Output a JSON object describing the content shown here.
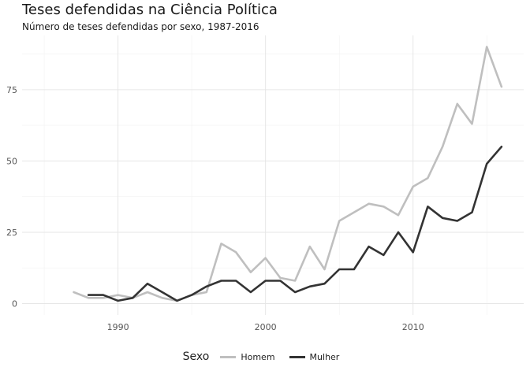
{
  "chart_data": {
    "type": "line",
    "title": "Teses defendidas na Ciência Política",
    "subtitle": "Número de teses defendidas por sexo, 1987-2016",
    "xlabel": "",
    "ylabel": "",
    "xlim": [
      1983.5,
      2017.5
    ],
    "ylim": [
      -4,
      94
    ],
    "xticks": [
      1990,
      2000,
      2010
    ],
    "yticks": [
      0,
      25,
      50,
      75
    ],
    "legend_title": "Sexo",
    "legend_position": "bottom",
    "grid": true,
    "series": [
      {
        "name": "Homem",
        "color": "#bfbfbf",
        "x": [
          1987,
          1988,
          1989,
          1990,
          1991,
          1992,
          1993,
          1994,
          1995,
          1996,
          1997,
          1998,
          1999,
          2000,
          2001,
          2002,
          2003,
          2004,
          2005,
          2006,
          2007,
          2008,
          2009,
          2010,
          2011,
          2012,
          2013,
          2014,
          2015,
          2016
        ],
        "values": [
          4,
          2,
          2,
          3,
          2,
          4,
          2,
          1,
          3,
          4,
          21,
          18,
          11,
          16,
          9,
          8,
          20,
          12,
          29,
          32,
          35,
          34,
          31,
          41,
          44,
          55,
          70,
          63,
          90,
          76
        ]
      },
      {
        "name": "Mulher",
        "color": "#333333",
        "x": [
          1988,
          1989,
          1990,
          1991,
          1992,
          1993,
          1994,
          1995,
          1996,
          1997,
          1998,
          1999,
          2000,
          2001,
          2002,
          2003,
          2004,
          2005,
          2006,
          2007,
          2008,
          2009,
          2010,
          2011,
          2012,
          2013,
          2014,
          2015,
          2016
        ],
        "values": [
          3,
          3,
          1,
          2,
          7,
          4,
          1,
          3,
          6,
          8,
          8,
          4,
          8,
          8,
          4,
          6,
          7,
          12,
          12,
          20,
          17,
          25,
          18,
          34,
          30,
          29,
          32,
          49,
          55
        ]
      }
    ]
  }
}
